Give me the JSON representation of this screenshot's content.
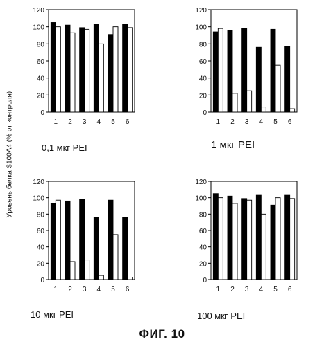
{
  "figure_title": "ФИГ. 10",
  "y_axis_label": "Уровень белка S100A4 (% от контроля)",
  "colors": {
    "filled_bar": "#000000",
    "empty_bar": "#ffffff",
    "outline": "#000000"
  },
  "chart_data": [
    {
      "type": "bar",
      "caption": "0,1 мкг PEI",
      "categories": [
        "1",
        "2",
        "3",
        "4",
        "5",
        "6"
      ],
      "ylim": [
        0,
        120
      ],
      "yticks": [
        0,
        20,
        40,
        60,
        80,
        100,
        120
      ],
      "series": [
        {
          "values": [
            105,
            102,
            99,
            103,
            91,
            103
          ],
          "fill": "black"
        },
        {
          "values": [
            100,
            93,
            97,
            80,
            100,
            99
          ],
          "fill": "white"
        }
      ]
    },
    {
      "type": "bar",
      "caption": "1 мкг PEI",
      "categories": [
        "1",
        "2",
        "3",
        "4",
        "5",
        "6"
      ],
      "ylim": [
        0,
        120
      ],
      "yticks": [
        0,
        20,
        40,
        60,
        80,
        100,
        120
      ],
      "series": [
        {
          "values": [
            94,
            96,
            98,
            76,
            97,
            77
          ],
          "fill": "black"
        },
        {
          "values": [
            98,
            22,
            25,
            6,
            55,
            4
          ],
          "fill": "white"
        }
      ]
    },
    {
      "type": "bar",
      "caption": "10 мкг PEI",
      "categories": [
        "1",
        "2",
        "3",
        "4",
        "5",
        "6"
      ],
      "ylim": [
        0,
        120
      ],
      "yticks": [
        0,
        20,
        40,
        60,
        80,
        100,
        120
      ],
      "series": [
        {
          "values": [
            93,
            96,
            98,
            76,
            97,
            76
          ],
          "fill": "black"
        },
        {
          "values": [
            97,
            22,
            24,
            5,
            55,
            3
          ],
          "fill": "white"
        }
      ]
    },
    {
      "type": "bar",
      "caption": "100 мкг PEI",
      "categories": [
        "1",
        "2",
        "3",
        "4",
        "5",
        "6"
      ],
      "ylim": [
        0,
        120
      ],
      "yticks": [
        0,
        20,
        40,
        60,
        80,
        100,
        120
      ],
      "series": [
        {
          "values": [
            105,
            102,
            99,
            103,
            91,
            103
          ],
          "fill": "black"
        },
        {
          "values": [
            100,
            93,
            97,
            80,
            100,
            99
          ],
          "fill": "white"
        }
      ]
    }
  ]
}
